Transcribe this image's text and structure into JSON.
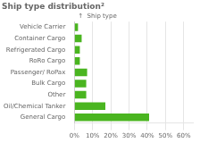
{
  "chart_data": {
    "type": "bar",
    "orientation": "horizontal",
    "title": "Ship type distribution²",
    "annotations": [
      "↑  Ship type"
    ],
    "categories": [
      "General Cargo",
      "Oil/Chemical Tanker",
      "Other",
      "Bulk Cargo",
      "Passenger/ RoPax",
      "RoRo Cargo",
      "Refrigerated Cargo",
      "Container Cargo",
      "Vehicle Carrier"
    ],
    "values": [
      41.0,
      17.0,
      6.5,
      6.5,
      7.0,
      3.0,
      3.0,
      4.0,
      2.0
    ],
    "color": "#4ab520",
    "xlim": [
      0,
      65
    ],
    "xticks": [
      {
        "value": 0,
        "label": "0%"
      },
      {
        "value": 10,
        "label": "10%"
      },
      {
        "value": 20,
        "label": "20%"
      },
      {
        "value": 30,
        "label": "30%"
      },
      {
        "value": 40,
        "label": "40%"
      },
      {
        "value": 50,
        "label": "50%"
      },
      {
        "value": 60,
        "label": "60%"
      }
    ],
    "grid": true
  }
}
